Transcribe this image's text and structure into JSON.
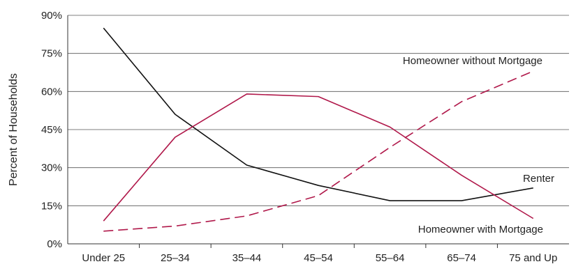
{
  "chart_data": {
    "type": "line",
    "title": "",
    "xlabel": "",
    "ylabel": "Percent of Households",
    "categories": [
      "Under 25",
      "25–34",
      "35–44",
      "45–54",
      "55–64",
      "65–74",
      "75 and Up"
    ],
    "ylim": [
      0,
      90
    ],
    "yticks": [
      0,
      15,
      30,
      45,
      60,
      75,
      90
    ],
    "ytick_labels": [
      "0%",
      "15%",
      "30%",
      "45%",
      "60%",
      "75%",
      "90%"
    ],
    "grid": "horizontal",
    "legend": "inline-labels",
    "series": [
      {
        "name": "Renter",
        "values": [
          85,
          51,
          31,
          23,
          17,
          17,
          22
        ],
        "color": "#111111",
        "style": "solid"
      },
      {
        "name": "Homeowner with Mortgage",
        "values": [
          9,
          42,
          59,
          58,
          46,
          27,
          10
        ],
        "color": "#b0184a",
        "style": "solid"
      },
      {
        "name": "Homeowner without Mortgage",
        "values": [
          5,
          7,
          11,
          19,
          38,
          56,
          68
        ],
        "color": "#b0184a",
        "style": "dashed"
      }
    ]
  }
}
